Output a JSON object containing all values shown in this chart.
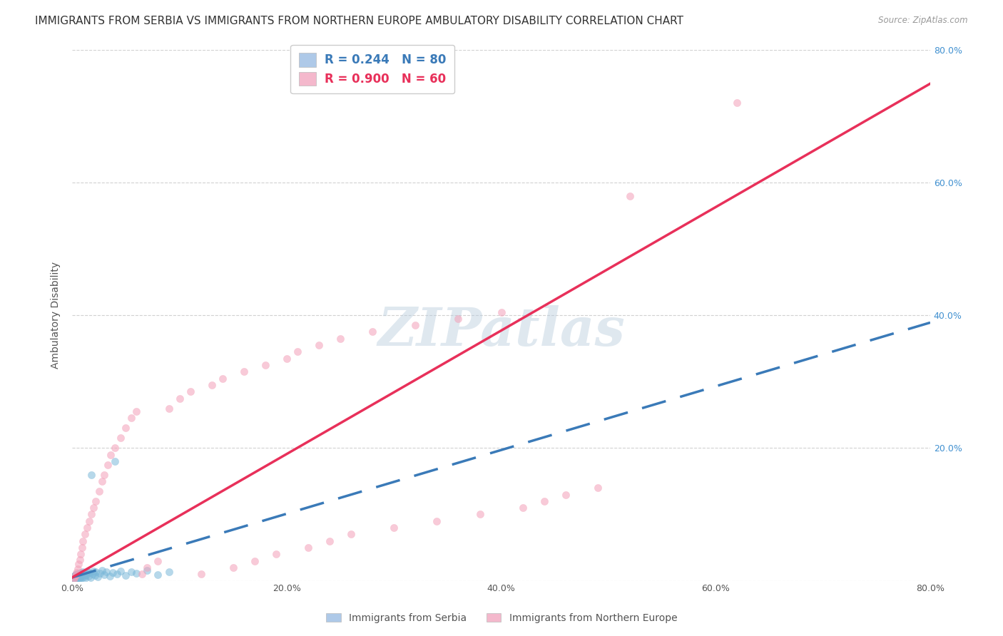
{
  "title": "IMMIGRANTS FROM SERBIA VS IMMIGRANTS FROM NORTHERN EUROPE AMBULATORY DISABILITY CORRELATION CHART",
  "source": "Source: ZipAtlas.com",
  "ylabel": "Ambulatory Disability",
  "xlim": [
    0.0,
    0.8
  ],
  "ylim": [
    0.0,
    0.8
  ],
  "xticks": [
    0.0,
    0.2,
    0.4,
    0.6,
    0.8
  ],
  "yticks": [
    0.0,
    0.2,
    0.4,
    0.6,
    0.8
  ],
  "xtick_labels": [
    "0.0%",
    "20.0%",
    "40.0%",
    "60.0%",
    "80.0%"
  ],
  "ytick_labels": [
    "",
    "20.0%",
    "40.0%",
    "60.0%",
    "80.0%"
  ],
  "serbia": {
    "name": "Immigrants from Serbia",
    "R": 0.244,
    "N": 80,
    "color": "#7ab8d9",
    "line_color": "#3a7ab8",
    "line_style": "dashed",
    "x": [
      0.0005,
      0.0006,
      0.0007,
      0.0008,
      0.0009,
      0.001,
      0.001,
      0.001,
      0.001,
      0.001,
      0.0012,
      0.0013,
      0.0015,
      0.0016,
      0.0018,
      0.002,
      0.002,
      0.002,
      0.002,
      0.002,
      0.0022,
      0.0025,
      0.0028,
      0.003,
      0.003,
      0.003,
      0.003,
      0.003,
      0.003,
      0.0035,
      0.004,
      0.004,
      0.004,
      0.004,
      0.0045,
      0.005,
      0.005,
      0.005,
      0.005,
      0.006,
      0.006,
      0.006,
      0.007,
      0.007,
      0.007,
      0.008,
      0.008,
      0.009,
      0.009,
      0.01,
      0.01,
      0.011,
      0.012,
      0.012,
      0.013,
      0.014,
      0.015,
      0.016,
      0.017,
      0.018,
      0.019,
      0.02,
      0.021,
      0.022,
      0.024,
      0.026,
      0.028,
      0.03,
      0.032,
      0.035,
      0.038,
      0.04,
      0.042,
      0.045,
      0.05,
      0.055,
      0.06,
      0.07,
      0.08,
      0.09
    ],
    "y": [
      0.001,
      0.002,
      0.001,
      0.003,
      0.002,
      0.001,
      0.003,
      0.002,
      0.004,
      0.003,
      0.002,
      0.005,
      0.003,
      0.006,
      0.004,
      0.002,
      0.005,
      0.003,
      0.007,
      0.004,
      0.006,
      0.003,
      0.008,
      0.002,
      0.005,
      0.007,
      0.004,
      0.009,
      0.006,
      0.003,
      0.005,
      0.008,
      0.003,
      0.01,
      0.006,
      0.004,
      0.007,
      0.009,
      0.005,
      0.008,
      0.003,
      0.011,
      0.006,
      0.009,
      0.004,
      0.007,
      0.012,
      0.005,
      0.01,
      0.008,
      0.013,
      0.006,
      0.011,
      0.004,
      0.009,
      0.014,
      0.007,
      0.012,
      0.005,
      0.16,
      0.01,
      0.015,
      0.008,
      0.013,
      0.006,
      0.011,
      0.016,
      0.009,
      0.014,
      0.007,
      0.012,
      0.18,
      0.01,
      0.015,
      0.008,
      0.013,
      0.011,
      0.016,
      0.009,
      0.014
    ]
  },
  "northern": {
    "name": "Immigrants from Northern Europe",
    "R": 0.9,
    "N": 60,
    "color": "#f4a0b8",
    "line_color": "#e8305a",
    "line_style": "solid",
    "x": [
      0.001,
      0.002,
      0.003,
      0.004,
      0.005,
      0.006,
      0.007,
      0.008,
      0.009,
      0.01,
      0.012,
      0.014,
      0.016,
      0.018,
      0.02,
      0.022,
      0.025,
      0.028,
      0.03,
      0.033,
      0.036,
      0.04,
      0.045,
      0.05,
      0.055,
      0.06,
      0.065,
      0.07,
      0.08,
      0.09,
      0.1,
      0.11,
      0.12,
      0.13,
      0.14,
      0.15,
      0.16,
      0.17,
      0.18,
      0.19,
      0.2,
      0.21,
      0.22,
      0.23,
      0.24,
      0.25,
      0.26,
      0.28,
      0.3,
      0.32,
      0.34,
      0.36,
      0.38,
      0.4,
      0.42,
      0.44,
      0.46,
      0.49,
      0.52,
      0.62
    ],
    "y": [
      0.002,
      0.005,
      0.008,
      0.012,
      0.018,
      0.025,
      0.032,
      0.04,
      0.05,
      0.06,
      0.07,
      0.08,
      0.09,
      0.1,
      0.11,
      0.12,
      0.135,
      0.15,
      0.16,
      0.175,
      0.19,
      0.2,
      0.215,
      0.23,
      0.245,
      0.255,
      0.01,
      0.02,
      0.03,
      0.26,
      0.275,
      0.285,
      0.01,
      0.295,
      0.305,
      0.02,
      0.315,
      0.03,
      0.325,
      0.04,
      0.335,
      0.345,
      0.05,
      0.355,
      0.06,
      0.365,
      0.07,
      0.375,
      0.08,
      0.385,
      0.09,
      0.395,
      0.1,
      0.405,
      0.11,
      0.12,
      0.13,
      0.14,
      0.58,
      0.72
    ]
  },
  "legend": {
    "serbia_label": "Immigrants from Serbia",
    "northern_label": "Immigrants from Northern Europe",
    "R_serbia": "0.244",
    "N_serbia": "80",
    "R_northern": "0.900",
    "N_northern": "60"
  },
  "watermark": "ZIPatlas",
  "background_color": "#ffffff",
  "grid_color": "#cccccc",
  "title_fontsize": 11,
  "axis_label_fontsize": 10,
  "tick_fontsize": 9,
  "marker_size": 55
}
